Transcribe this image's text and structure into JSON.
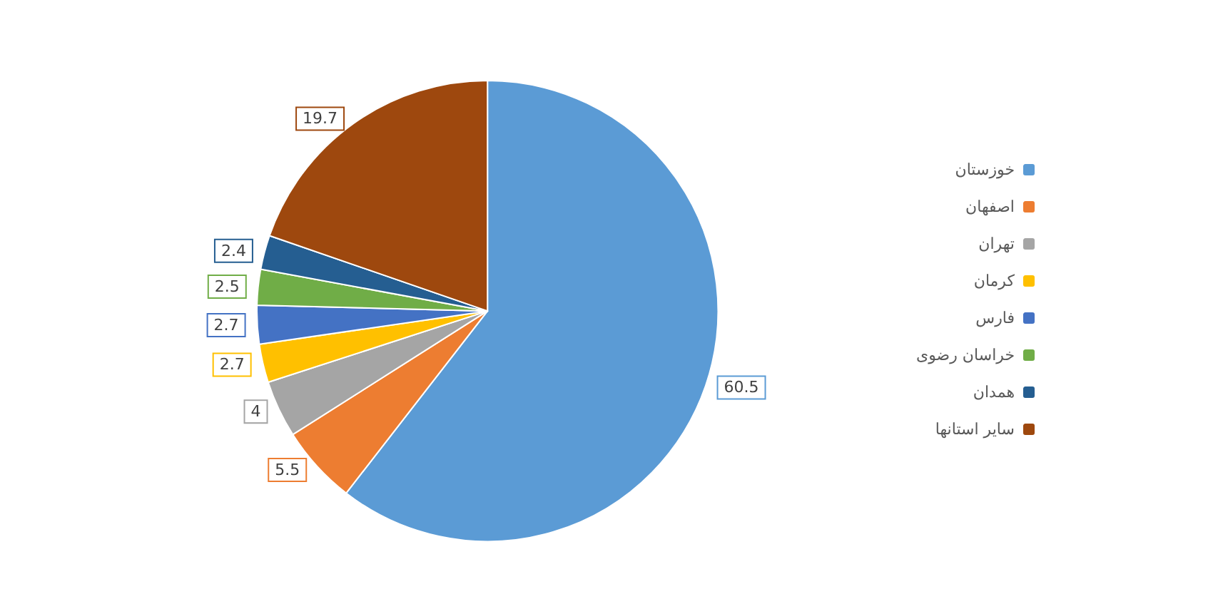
{
  "chart_data": {
    "type": "pie",
    "categories": [
      "خوزستان",
      "اصفهان",
      "تهران",
      "کرمان",
      "فارس",
      "خراسان رضوی",
      "همدان",
      "سایر استانها"
    ],
    "values": [
      60.5,
      5.5,
      4,
      2.7,
      2.7,
      2.5,
      2.4,
      19.7
    ],
    "colors": [
      "#5b9bd5",
      "#ed7d31",
      "#a5a5a5",
      "#ffc000",
      "#4472c4",
      "#70ad47",
      "#255e91",
      "#9e480e"
    ],
    "data_labels": true,
    "legend": "right"
  }
}
